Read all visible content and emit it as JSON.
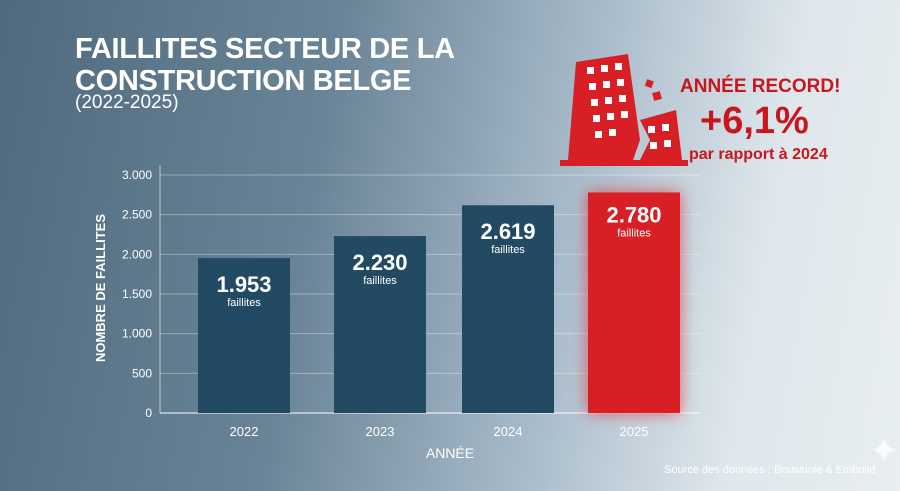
{
  "chart_data": {
    "type": "bar",
    "title": "FAILLITES SECTEUR DE LA CONSTRUCTION BELGE",
    "subtitle": "(2022-2025)",
    "categories": [
      "2022",
      "2023",
      "2024",
      "2025"
    ],
    "values": [
      1953,
      2230,
      2619,
      2780
    ],
    "data_labels": [
      "1.953",
      "2.230",
      "2.619",
      "2.780"
    ],
    "data_label_unit": "faillites",
    "xlabel": "ANNÉE",
    "ylabel": "NOMBRE DE FAILLITES",
    "ylim": [
      0,
      3000
    ],
    "yticks": [
      0,
      500,
      1000,
      1500,
      2000,
      2500,
      3000
    ],
    "ytick_labels": [
      "0",
      "500",
      "1.000",
      "1.500",
      "2.000",
      "2.500",
      "3.000"
    ],
    "grid": true,
    "colors": {
      "bar": "#224a63",
      "highlight": "#d81f26"
    },
    "highlight_index": 3
  },
  "callout": {
    "icon": "collapsing-building-icon",
    "headline": "ANNÉE RECORD!",
    "change": "+6,1%",
    "comparison": "par rapport à 2024"
  },
  "source": "Source des données : Bouwunie & Embuild"
}
